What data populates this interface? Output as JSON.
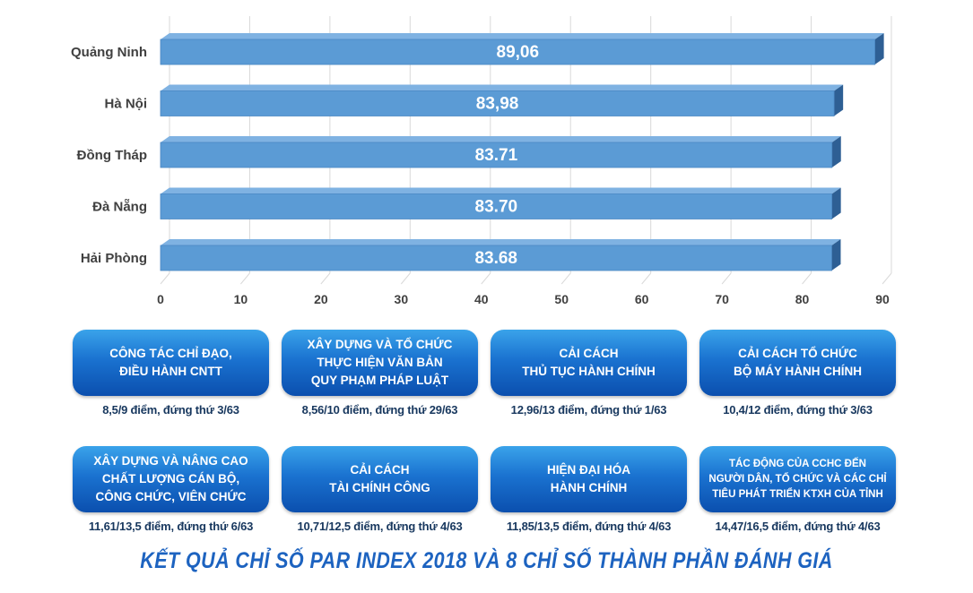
{
  "chart_data": {
    "type": "bar",
    "orientation": "horizontal",
    "categories": [
      "Quảng Ninh",
      "Hà Nội",
      "Đồng Tháp",
      "Đà Nẵng",
      "Hải Phòng"
    ],
    "values": [
      89.06,
      83.98,
      83.71,
      83.7,
      83.68
    ],
    "value_labels": [
      "89,06",
      "83,98",
      "83.71",
      "83.70",
      "83.68"
    ],
    "xlim": [
      0,
      90
    ],
    "xticks": [
      "0",
      "10",
      "20",
      "30",
      "40",
      "50",
      "60",
      "70",
      "80",
      "90"
    ],
    "grid": "vertical",
    "bar_color": "#5b9bd5"
  },
  "cards": [
    {
      "title": "CÔNG TÁC CHỈ ĐẠO,\nĐIỀU HÀNH CNTT",
      "caption": "8,5/9 điểm, đứng thứ 3/63"
    },
    {
      "title": "XÂY DỰNG VÀ TỔ CHỨC\nTHỰC HIỆN VĂN BẢN\nQUY PHẠM PHÁP LUẬT",
      "caption": "8,56/10 điểm, đứng thứ 29/63"
    },
    {
      "title": "CẢI CÁCH\nTHỦ TỤC HÀNH CHÍNH",
      "caption": "12,96/13 điểm, đứng thứ 1/63"
    },
    {
      "title": "CẢI CÁCH TỔ CHỨC\nBỘ MÁY HÀNH CHÍNH",
      "caption": "10,4/12 điểm, đứng thứ 3/63"
    },
    {
      "title": "XÂY DỰNG VÀ NÂNG CAO\nCHẤT LƯỢNG CÁN BỘ,\nCÔNG CHỨC, VIÊN CHỨC",
      "caption": "11,61/13,5 điểm, đứng thứ 6/63"
    },
    {
      "title": "CẢI CÁCH\nTÀI CHÍNH CÔNG",
      "caption": "10,71/12,5 điểm, đứng thứ 4/63"
    },
    {
      "title": "HIỆN ĐẠI HÓA\nHÀNH CHÍNH",
      "caption": "11,85/13,5 điểm, đứng thứ 4/63"
    },
    {
      "title": "TÁC ĐỘNG CỦA CCHC ĐẾN\nNGƯỜI DÂN, TỔ CHỨC VÀ CÁC CHỈ\nTIÊU PHÁT TRIỂN KTXH CỦA TỈNH",
      "caption": "14,47/16,5 điểm, đứng thứ 4/63"
    }
  ],
  "footer": {
    "title": "KẾT QUẢ CHỈ SỐ PAR INDEX 2018 VÀ 8 CHỈ SỐ THÀNH PHẦN ĐÁNH GIÁ"
  }
}
